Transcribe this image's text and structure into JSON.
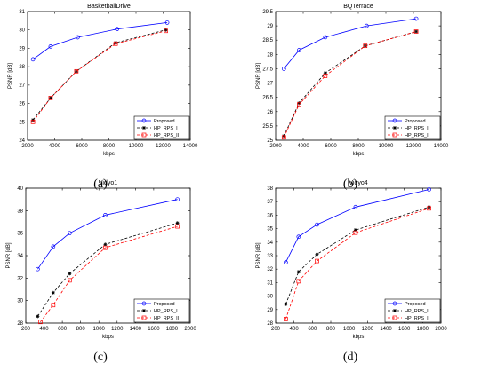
{
  "figure": {
    "panel_labels": [
      "(a)",
      "(b)",
      "(c)",
      "(d)"
    ]
  },
  "colors": {
    "proposed": "#0000ff",
    "hp_rps_i": "#000000",
    "hp_rps_ii": "#ff0000"
  },
  "chart_data": [
    {
      "type": "line",
      "title": "BasketballDrive",
      "xlabel": "kbps",
      "ylabel": "PSNR [dB]",
      "xlim": [
        2000,
        14000
      ],
      "ylim": [
        24,
        31
      ],
      "xticks": [
        2000,
        4000,
        6000,
        8000,
        10000,
        12000,
        14000
      ],
      "yticks": [
        24,
        25,
        26,
        27,
        28,
        29,
        30,
        31
      ],
      "legend": "bottom-right",
      "series": [
        {
          "name": "Proposed",
          "x": [
            2400,
            3700,
            5700,
            8600,
            12300
          ],
          "y": [
            28.4,
            29.1,
            29.6,
            30.05,
            30.4
          ]
        },
        {
          "name": "HP_RPS_I",
          "x": [
            2400,
            3700,
            5600,
            8500,
            12200
          ],
          "y": [
            25.1,
            26.3,
            27.75,
            29.3,
            30.0
          ]
        },
        {
          "name": "HP_RPS_II",
          "x": [
            2400,
            3700,
            5600,
            8500,
            12200
          ],
          "y": [
            25.0,
            26.3,
            27.75,
            29.25,
            29.95
          ]
        }
      ]
    },
    {
      "type": "line",
      "title": "BQTerrace",
      "xlabel": "kbps",
      "ylabel": "PSNR [dB]",
      "xlim": [
        2000,
        14000
      ],
      "ylim": [
        25,
        29.5
      ],
      "xticks": [
        2000,
        4000,
        6000,
        8000,
        10000,
        12000,
        14000
      ],
      "yticks": [
        25,
        25.5,
        26,
        26.5,
        27,
        27.5,
        28,
        28.5,
        29,
        29.5
      ],
      "legend": "bottom-right",
      "series": [
        {
          "name": "Proposed",
          "x": [
            2600,
            3700,
            5600,
            8600,
            12200
          ],
          "y": [
            27.5,
            28.15,
            28.6,
            29.0,
            29.25
          ]
        },
        {
          "name": "HP_RPS_I",
          "x": [
            2600,
            3700,
            5600,
            8500,
            12200
          ],
          "y": [
            25.15,
            26.3,
            27.35,
            28.3,
            28.8
          ]
        },
        {
          "name": "HP_RPS_II",
          "x": [
            2600,
            3700,
            5600,
            8500,
            12200
          ],
          "y": [
            25.1,
            26.25,
            27.25,
            28.3,
            28.8
          ]
        }
      ]
    },
    {
      "type": "line",
      "title": "Vidyo1",
      "xlabel": "kbps",
      "ylabel": "PSNR [dB]",
      "xlim": [
        200,
        2000
      ],
      "ylim": [
        28,
        40
      ],
      "xticks": [
        200,
        400,
        600,
        800,
        1000,
        1200,
        1400,
        1600,
        1800,
        2000
      ],
      "yticks": [
        28,
        30,
        32,
        34,
        36,
        38,
        40
      ],
      "legend": "bottom-right",
      "series": [
        {
          "name": "Proposed",
          "x": [
            330,
            500,
            680,
            1070,
            1860
          ],
          "y": [
            32.8,
            34.8,
            36.0,
            37.6,
            39.0
          ]
        },
        {
          "name": "HP_RPS_I",
          "x": [
            330,
            500,
            680,
            1070,
            1860
          ],
          "y": [
            28.6,
            30.7,
            32.4,
            35.0,
            36.9
          ]
        },
        {
          "name": "HP_RPS_II",
          "x": [
            360,
            500,
            680,
            1070,
            1860
          ],
          "y": [
            28.1,
            29.6,
            31.8,
            34.7,
            36.6
          ]
        }
      ]
    },
    {
      "type": "line",
      "title": "Vidyo4",
      "xlabel": "kbps",
      "ylabel": "PSNR [dB]",
      "xlim": [
        200,
        2000
      ],
      "ylim": [
        28,
        38
      ],
      "xticks": [
        200,
        400,
        600,
        800,
        1000,
        1200,
        1400,
        1600,
        1800,
        2000
      ],
      "yticks": [
        28,
        29,
        30,
        31,
        32,
        33,
        34,
        35,
        36,
        37,
        38
      ],
      "legend": "bottom-right",
      "series": [
        {
          "name": "Proposed",
          "x": [
            310,
            450,
            650,
            1070,
            1870
          ],
          "y": [
            32.5,
            34.4,
            35.3,
            36.6,
            37.9
          ]
        },
        {
          "name": "HP_RPS_I",
          "x": [
            310,
            450,
            650,
            1070,
            1870
          ],
          "y": [
            29.4,
            31.8,
            33.1,
            34.9,
            36.6
          ]
        },
        {
          "name": "HP_RPS_II",
          "x": [
            310,
            450,
            650,
            1070,
            1870
          ],
          "y": [
            28.3,
            31.1,
            32.6,
            34.7,
            36.5
          ]
        }
      ]
    }
  ]
}
